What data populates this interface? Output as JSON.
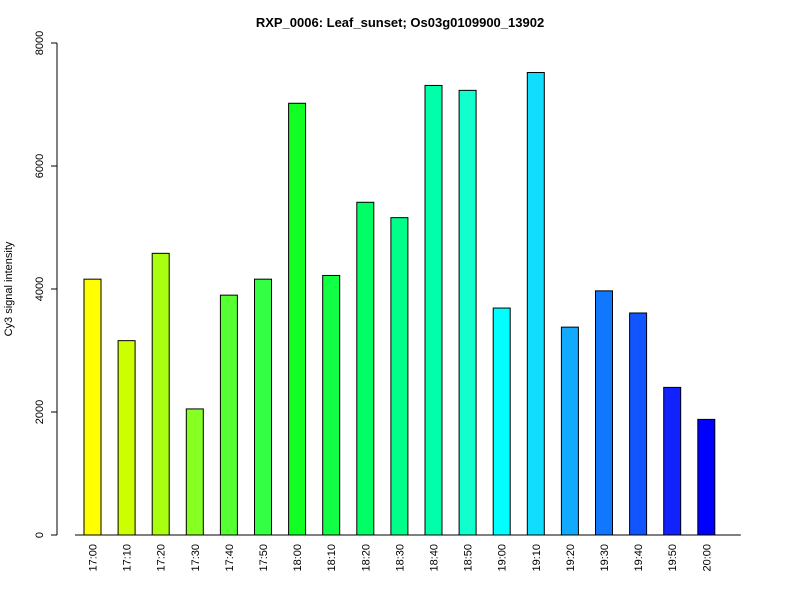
{
  "chart_data": {
    "type": "bar",
    "title": "RXP_0006: Leaf_sunset; Os03g0109900_13902",
    "xlabel": "",
    "ylabel": "Cy3 signal intensity",
    "ylim": [
      0,
      8000
    ],
    "yticks": [
      0,
      2000,
      4000,
      6000,
      8000
    ],
    "grid": false,
    "categories": [
      "17:00",
      "17:10",
      "17:20",
      "17:30",
      "17:40",
      "17:50",
      "18:00",
      "18:10",
      "18:20",
      "18:30",
      "18:40",
      "18:50",
      "19:00",
      "19:10",
      "19:20",
      "19:30",
      "19:40",
      "19:50",
      "20:00"
    ],
    "values": [
      4160,
      3160,
      4580,
      2050,
      3900,
      4160,
      7020,
      4220,
      5410,
      5160,
      7310,
      7230,
      3690,
      7520,
      3380,
      3970,
      3610,
      2400,
      1880
    ],
    "colors": [
      "#FFFF00",
      "#CCFF00",
      "#AAFF11",
      "#88FF22",
      "#55FF33",
      "#33FF44",
      "#11FF22",
      "#11FF44",
      "#00FF66",
      "#00FF88",
      "#00FFAA",
      "#11FFCC",
      "#00FFFF",
      "#11DDFF",
      "#11AAFF",
      "#1177FF",
      "#1155FF",
      "#1122FF",
      "#0000FF"
    ]
  }
}
